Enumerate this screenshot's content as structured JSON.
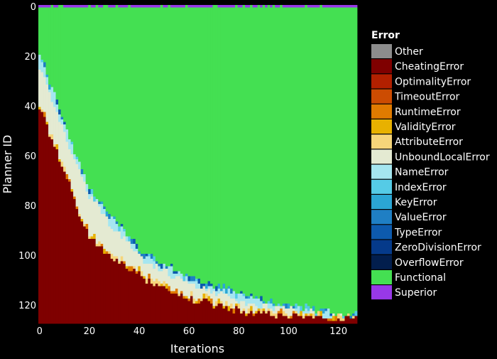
{
  "chart_data": {
    "type": "heatmap",
    "xlabel": "Iterations",
    "ylabel": "Planner ID",
    "xlim": [
      0,
      127
    ],
    "ylim": [
      127,
      0
    ],
    "x_ticks": [
      "0",
      "20",
      "40",
      "60",
      "80",
      "100",
      "120"
    ],
    "y_ticks": [
      "0",
      "20",
      "40",
      "60",
      "80",
      "100",
      "120"
    ],
    "legend_title": "Error",
    "legend_placement": "right",
    "categories": [
      {
        "name": "Other",
        "color": "#8c8c8c"
      },
      {
        "name": "CheatingError",
        "color": "#7f0000"
      },
      {
        "name": "OptimalityError",
        "color": "#b22000"
      },
      {
        "name": "TimeoutError",
        "color": "#cc4c02"
      },
      {
        "name": "RuntimeError",
        "color": "#e07b00"
      },
      {
        "name": "ValidityError",
        "color": "#e8b100"
      },
      {
        "name": "AttributeError",
        "color": "#f6d57a"
      },
      {
        "name": "UnboundLocalError",
        "color": "#e4ead2"
      },
      {
        "name": "NameError",
        "color": "#a5e6f0"
      },
      {
        "name": "IndexError",
        "color": "#55cbe6"
      },
      {
        "name": "KeyError",
        "color": "#2ba6d4"
      },
      {
        "name": "ValueError",
        "color": "#1f7fc4"
      },
      {
        "name": "TypeError",
        "color": "#0d5aad"
      },
      {
        "name": "ZeroDivisionError",
        "color": "#053a8a"
      },
      {
        "name": "OverflowError",
        "color": "#021e4d"
      },
      {
        "name": "Functional",
        "color": "#44e052"
      },
      {
        "name": "Superior",
        "color": "#9838e8"
      }
    ],
    "boundaries": {
      "iterations": [
        0,
        2,
        4,
        6,
        8,
        10,
        12,
        14,
        16,
        18,
        20,
        24,
        28,
        32,
        36,
        40,
        44,
        48,
        52,
        56,
        60,
        64,
        68,
        72,
        76,
        80,
        86,
        92,
        98,
        104,
        110,
        116,
        122,
        127
      ],
      "cheating_start": [
        42,
        46,
        52,
        56,
        63,
        68,
        72,
        79,
        84,
        88,
        93,
        97,
        101,
        103,
        106,
        108,
        111,
        113,
        115,
        117,
        118,
        119,
        120,
        121,
        122,
        123,
        124,
        124,
        125,
        125,
        126,
        126,
        126,
        126
      ],
      "unbound_start": [
        25,
        28,
        35,
        40,
        46,
        51,
        57,
        63,
        67,
        72,
        77,
        82,
        88,
        92,
        96,
        101,
        104,
        106,
        108,
        110,
        112,
        114,
        115,
        116,
        117,
        119,
        120,
        121,
        122,
        123,
        124,
        125,
        125,
        125
      ],
      "functional_until": [
        20,
        24,
        31,
        36,
        42,
        47,
        53,
        59,
        63,
        68,
        73,
        78,
        84,
        88,
        93,
        98,
        101,
        103,
        105,
        107,
        109,
        111,
        112,
        113,
        114,
        116,
        118,
        119,
        120,
        121,
        122,
        123,
        124,
        124
      ],
      "superior_rows": 1
    }
  }
}
